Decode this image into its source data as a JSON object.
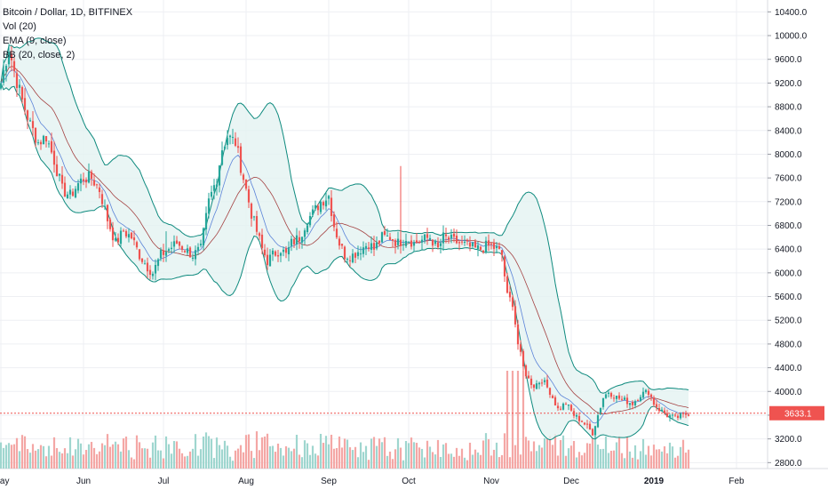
{
  "legend": {
    "title": "Bitcoin / Dollar, 1D, BITFINEX",
    "vol": "Vol (20)",
    "ema": "EMA (9, close)",
    "bb": "BB (20, close, 2)"
  },
  "colors": {
    "up": "#26a69a",
    "down": "#ef5350",
    "up_vol": "#9fd6cf",
    "down_vol": "#f4a7a5",
    "ema": "#f06b6b",
    "bb_band": "#0e8a7e",
    "bb_fill": "#e3f3f1",
    "bb_mid": "#a44242",
    "grid": "#eeeff3",
    "last_price": "#ef5350"
  },
  "chart_data": {
    "type": "candlestick",
    "symbol": "Bitcoin / Dollar",
    "interval": "1D",
    "exchange": "BITFINEX",
    "y_ticks": [
      10400,
      10000,
      9600,
      9200,
      8800,
      8400,
      8000,
      7600,
      7200,
      6800,
      6400,
      6000,
      5600,
      5200,
      4800,
      4400,
      4000,
      3600,
      3200,
      2800
    ],
    "y_tick_labels": [
      "10400.0",
      "10000.0",
      "9600.0",
      "9200.0",
      "8800.0",
      "8400.0",
      "8000.0",
      "7600.0",
      "7200.0",
      "6800.0",
      "6400.0",
      "6000.0",
      "5600.0",
      "5200.0",
      "4800.0",
      "4400.0",
      "4000.0",
      "3600.0",
      "3200.0",
      "2800.0"
    ],
    "ylim": [
      2700,
      10600
    ],
    "x_labels": [
      {
        "text": "May",
        "day": 0
      },
      {
        "text": "Jun",
        "day": 31
      },
      {
        "text": "Jul",
        "day": 61
      },
      {
        "text": "Aug",
        "day": 92
      },
      {
        "text": "Sep",
        "day": 123
      },
      {
        "text": "Oct",
        "day": 153
      },
      {
        "text": "Nov",
        "day": 184
      },
      {
        "text": "Dec",
        "day": 214
      },
      {
        "text": "2019",
        "day": 245,
        "bold": true
      },
      {
        "text": "Feb",
        "day": 276
      }
    ],
    "last_price": 3633.1,
    "last_price_label": "3633.1",
    "key_points": [
      [
        0,
        9200
      ],
      [
        3,
        9800
      ],
      [
        5,
        9400
      ],
      [
        8,
        8900
      ],
      [
        11,
        8500
      ],
      [
        14,
        8200
      ],
      [
        17,
        8300
      ],
      [
        20,
        7900
      ],
      [
        23,
        7400
      ],
      [
        26,
        7300
      ],
      [
        29,
        7500
      ],
      [
        31,
        7600
      ],
      [
        34,
        7600
      ],
      [
        37,
        7400
      ],
      [
        40,
        6900
      ],
      [
        43,
        6500
      ],
      [
        46,
        6700
      ],
      [
        49,
        6600
      ],
      [
        52,
        6300
      ],
      [
        55,
        6100
      ],
      [
        57,
        6000
      ],
      [
        60,
        6300
      ],
      [
        63,
        6400
      ],
      [
        66,
        6500
      ],
      [
        69,
        6400
      ],
      [
        72,
        6300
      ],
      [
        75,
        6400
      ],
      [
        78,
        7200
      ],
      [
        81,
        7600
      ],
      [
        83,
        8100
      ],
      [
        85,
        8300
      ],
      [
        88,
        8200
      ],
      [
        90,
        7800
      ],
      [
        92,
        7400
      ],
      [
        94,
        7000
      ],
      [
        96,
        6700
      ],
      [
        98,
        6400
      ],
      [
        100,
        6200
      ],
      [
        102,
        6300
      ],
      [
        105,
        6400
      ],
      [
        107,
        6300
      ],
      [
        109,
        6500
      ],
      [
        112,
        6600
      ],
      [
        115,
        6900
      ],
      [
        117,
        7000
      ],
      [
        120,
        7200
      ],
      [
        123,
        7300
      ],
      [
        125,
        6800
      ],
      [
        127,
        6500
      ],
      [
        129,
        6300
      ],
      [
        132,
        6300
      ],
      [
        135,
        6400
      ],
      [
        138,
        6500
      ],
      [
        140,
        6400
      ],
      [
        143,
        6600
      ],
      [
        146,
        6600
      ],
      [
        149,
        6500
      ],
      [
        152,
        6600
      ],
      [
        155,
        6500
      ],
      [
        158,
        6550
      ],
      [
        161,
        6600
      ],
      [
        164,
        6400
      ],
      [
        166,
        6600
      ],
      [
        169,
        6550
      ],
      [
        172,
        6500
      ],
      [
        175,
        6450
      ],
      [
        178,
        6400
      ],
      [
        180,
        6400
      ],
      [
        182,
        6450
      ],
      [
        184,
        6450
      ],
      [
        186,
        6400
      ],
      [
        188,
        6300
      ],
      [
        190,
        5600
      ],
      [
        192,
        5500
      ],
      [
        194,
        4800
      ],
      [
        196,
        4400
      ],
      [
        198,
        4200
      ],
      [
        200,
        4100
      ],
      [
        203,
        4200
      ],
      [
        206,
        4000
      ],
      [
        209,
        3700
      ],
      [
        212,
        3800
      ],
      [
        215,
        3600
      ],
      [
        218,
        3500
      ],
      [
        220,
        3400
      ],
      [
        222,
        3300
      ],
      [
        224,
        3600
      ],
      [
        226,
        3900
      ],
      [
        228,
        4000
      ],
      [
        231,
        3900
      ],
      [
        234,
        3850
      ],
      [
        237,
        3800
      ],
      [
        240,
        3950
      ],
      [
        243,
        4000
      ],
      [
        245,
        3800
      ],
      [
        247,
        3700
      ],
      [
        250,
        3600
      ],
      [
        253,
        3550
      ],
      [
        256,
        3600
      ],
      [
        258,
        3633
      ]
    ],
    "spikes": [
      {
        "day": 150,
        "high": 7800
      },
      {
        "day": 62,
        "high": 6700
      }
    ]
  }
}
